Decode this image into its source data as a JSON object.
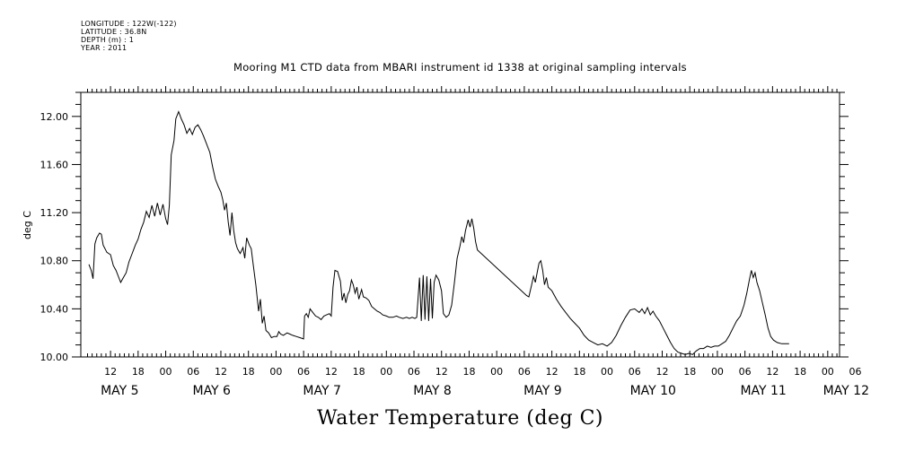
{
  "meta": {
    "longitude": "LONGITUDE : 122W(-122)",
    "latitude": "LATITUDE : 36.8N",
    "depth": "DEPTH (m) : 1",
    "year": "YEAR : 2011"
  },
  "chart_data": {
    "type": "line",
    "title": "Mooring M1 CTD data from MBARI instrument id 1338 at original sampling intervals",
    "subtitle": "Water Temperature (deg C)",
    "ylabel": "deg C",
    "xlabel": "",
    "ylim": [
      10.0,
      12.2
    ],
    "xlim_hours": [
      0,
      171
    ],
    "x_unit": "hours since 2011-05-05 07:00",
    "y_ticks": [
      "10.00",
      "10.40",
      "10.80",
      "11.20",
      "11.60",
      "12.00"
    ],
    "y_tick_values": [
      10.0,
      10.4,
      10.8,
      11.2,
      11.6,
      12.0
    ],
    "hour_ticks": [
      {
        "h": 5,
        "label": "12"
      },
      {
        "h": 11,
        "label": "18"
      },
      {
        "h": 17,
        "label": "00"
      },
      {
        "h": 23,
        "label": "06"
      },
      {
        "h": 29,
        "label": "12"
      },
      {
        "h": 35,
        "label": "18"
      },
      {
        "h": 41,
        "label": "00"
      },
      {
        "h": 47,
        "label": "06"
      },
      {
        "h": 53,
        "label": "12"
      },
      {
        "h": 59,
        "label": "18"
      },
      {
        "h": 65,
        "label": "00"
      },
      {
        "h": 71,
        "label": "06"
      },
      {
        "h": 77,
        "label": "12"
      },
      {
        "h": 83,
        "label": "18"
      },
      {
        "h": 89,
        "label": "00"
      },
      {
        "h": 95,
        "label": "06"
      },
      {
        "h": 101,
        "label": "12"
      },
      {
        "h": 107,
        "label": "18"
      },
      {
        "h": 113,
        "label": "00"
      },
      {
        "h": 119,
        "label": "06"
      },
      {
        "h": 125,
        "label": "12"
      },
      {
        "h": 131,
        "label": "18"
      },
      {
        "h": 137,
        "label": "00"
      },
      {
        "h": 143,
        "label": "06"
      },
      {
        "h": 149,
        "label": "12"
      },
      {
        "h": 155,
        "label": "18"
      },
      {
        "h": 161,
        "label": "00"
      },
      {
        "h": 167,
        "label": "06"
      }
    ],
    "day_labels": [
      {
        "h": 7,
        "label": "MAY  5"
      },
      {
        "h": 27,
        "label": "MAY  6"
      },
      {
        "h": 51,
        "label": "MAY  7"
      },
      {
        "h": 75,
        "label": "MAY  8"
      },
      {
        "h": 99,
        "label": "MAY  9"
      },
      {
        "h": 123,
        "label": "MAY 10"
      },
      {
        "h": 147,
        "label": "MAY 11"
      },
      {
        "h": 165,
        "label": "MAY 12"
      }
    ],
    "series": [
      {
        "name": "",
        "points": [
          [
            0.3,
            10.77
          ],
          [
            0.8,
            10.72
          ],
          [
            1.2,
            10.65
          ],
          [
            1.6,
            10.94
          ],
          [
            2.0,
            10.99
          ],
          [
            2.6,
            11.03
          ],
          [
            3.0,
            11.02
          ],
          [
            3.4,
            10.93
          ],
          [
            4.2,
            10.87
          ],
          [
            5.0,
            10.85
          ],
          [
            5.6,
            10.76
          ],
          [
            6.2,
            10.72
          ],
          [
            6.8,
            10.66
          ],
          [
            7.2,
            10.62
          ],
          [
            7.8,
            10.66
          ],
          [
            8.4,
            10.7
          ],
          [
            9.0,
            10.79
          ],
          [
            9.6,
            10.85
          ],
          [
            10.4,
            10.93
          ],
          [
            11.0,
            10.98
          ],
          [
            11.6,
            11.06
          ],
          [
            12.2,
            11.12
          ],
          [
            12.8,
            11.21
          ],
          [
            13.4,
            11.16
          ],
          [
            14.0,
            11.26
          ],
          [
            14.6,
            11.17
          ],
          [
            15.2,
            11.28
          ],
          [
            15.8,
            11.18
          ],
          [
            16.4,
            11.27
          ],
          [
            17.0,
            11.15
          ],
          [
            17.4,
            11.1
          ],
          [
            17.8,
            11.26
          ],
          [
            18.2,
            11.68
          ],
          [
            18.8,
            11.8
          ],
          [
            19.2,
            11.98
          ],
          [
            19.8,
            12.04
          ],
          [
            20.4,
            11.98
          ],
          [
            21.0,
            11.93
          ],
          [
            21.6,
            11.86
          ],
          [
            22.2,
            11.9
          ],
          [
            22.8,
            11.85
          ],
          [
            23.4,
            11.91
          ],
          [
            24.0,
            11.93
          ],
          [
            24.6,
            11.89
          ],
          [
            25.2,
            11.84
          ],
          [
            25.8,
            11.78
          ],
          [
            26.6,
            11.7
          ],
          [
            27.2,
            11.58
          ],
          [
            27.8,
            11.48
          ],
          [
            28.4,
            11.42
          ],
          [
            29.0,
            11.37
          ],
          [
            29.4,
            11.31
          ],
          [
            29.8,
            11.22
          ],
          [
            30.2,
            11.28
          ],
          [
            30.6,
            11.12
          ],
          [
            31.0,
            11.01
          ],
          [
            31.4,
            11.2
          ],
          [
            31.8,
            11.05
          ],
          [
            32.2,
            10.95
          ],
          [
            32.6,
            10.9
          ],
          [
            33.2,
            10.86
          ],
          [
            33.8,
            10.91
          ],
          [
            34.2,
            10.82
          ],
          [
            34.6,
            10.99
          ],
          [
            35.2,
            10.93
          ],
          [
            35.6,
            10.9
          ],
          [
            36.0,
            10.78
          ],
          [
            36.6,
            10.6
          ],
          [
            37.2,
            10.38
          ],
          [
            37.6,
            10.48
          ],
          [
            38.0,
            10.28
          ],
          [
            38.4,
            10.34
          ],
          [
            38.8,
            10.22
          ],
          [
            39.4,
            10.2
          ],
          [
            40.0,
            10.16
          ],
          [
            40.6,
            10.17
          ],
          [
            41.2,
            10.17
          ],
          [
            41.6,
            10.21
          ],
          [
            42.0,
            10.19
          ],
          [
            42.6,
            10.18
          ],
          [
            43.4,
            10.2
          ],
          [
            44.0,
            10.19
          ],
          [
            44.6,
            10.18
          ],
          [
            45.4,
            10.17
          ],
          [
            46.2,
            10.16
          ],
          [
            47.0,
            10.15
          ],
          [
            47.2,
            10.34
          ],
          [
            47.6,
            10.36
          ],
          [
            48.0,
            10.33
          ],
          [
            48.4,
            10.4
          ],
          [
            49.0,
            10.37
          ],
          [
            49.6,
            10.34
          ],
          [
            50.2,
            10.33
          ],
          [
            50.8,
            10.31
          ],
          [
            51.4,
            10.34
          ],
          [
            52.0,
            10.35
          ],
          [
            52.6,
            10.36
          ],
          [
            53.0,
            10.34
          ],
          [
            53.4,
            10.58
          ],
          [
            53.8,
            10.72
          ],
          [
            54.4,
            10.71
          ],
          [
            55.0,
            10.63
          ],
          [
            55.4,
            10.47
          ],
          [
            55.8,
            10.53
          ],
          [
            56.2,
            10.45
          ],
          [
            56.6,
            10.52
          ],
          [
            57.0,
            10.55
          ],
          [
            57.4,
            10.64
          ],
          [
            57.8,
            10.6
          ],
          [
            58.2,
            10.53
          ],
          [
            58.6,
            10.58
          ],
          [
            59.0,
            10.48
          ],
          [
            59.6,
            10.56
          ],
          [
            60.0,
            10.5
          ],
          [
            60.6,
            10.49
          ],
          [
            61.2,
            10.47
          ],
          [
            61.8,
            10.42
          ],
          [
            62.4,
            10.4
          ],
          [
            63.0,
            10.38
          ],
          [
            63.6,
            10.37
          ],
          [
            64.2,
            10.35
          ],
          [
            65.0,
            10.34
          ],
          [
            65.6,
            10.33
          ],
          [
            66.4,
            10.33
          ],
          [
            67.2,
            10.34
          ],
          [
            67.8,
            10.33
          ],
          [
            68.6,
            10.32
          ],
          [
            69.4,
            10.33
          ],
          [
            70.0,
            10.32
          ],
          [
            70.6,
            10.33
          ],
          [
            71.2,
            10.32
          ],
          [
            71.6,
            10.33
          ],
          [
            72.2,
            10.66
          ],
          [
            72.6,
            10.3
          ],
          [
            73.0,
            10.68
          ],
          [
            73.4,
            10.31
          ],
          [
            73.8,
            10.67
          ],
          [
            74.2,
            10.3
          ],
          [
            74.6,
            10.65
          ],
          [
            75.0,
            10.32
          ],
          [
            75.4,
            10.62
          ],
          [
            75.8,
            10.68
          ],
          [
            76.4,
            10.64
          ],
          [
            77.0,
            10.55
          ],
          [
            77.4,
            10.36
          ],
          [
            78.0,
            10.33
          ],
          [
            78.6,
            10.35
          ],
          [
            79.2,
            10.43
          ],
          [
            79.8,
            10.62
          ],
          [
            80.4,
            10.82
          ],
          [
            81.0,
            10.92
          ],
          [
            81.4,
            11.0
          ],
          [
            81.8,
            10.95
          ],
          [
            82.2,
            11.05
          ],
          [
            82.8,
            11.14
          ],
          [
            83.2,
            11.08
          ],
          [
            83.6,
            11.15
          ],
          [
            84.0,
            11.07
          ],
          [
            84.4,
            10.96
          ],
          [
            84.8,
            10.89
          ],
          [
            95.5,
            10.51
          ],
          [
            96.0,
            10.5
          ],
          [
            96.6,
            10.6
          ],
          [
            97.0,
            10.67
          ],
          [
            97.4,
            10.62
          ],
          [
            97.8,
            10.7
          ],
          [
            98.2,
            10.78
          ],
          [
            98.6,
            10.8
          ],
          [
            99.0,
            10.72
          ],
          [
            99.4,
            10.6
          ],
          [
            99.8,
            10.66
          ],
          [
            100.2,
            10.58
          ],
          [
            101.0,
            10.55
          ],
          [
            102.0,
            10.48
          ],
          [
            103.0,
            10.42
          ],
          [
            104.0,
            10.37
          ],
          [
            105.0,
            10.32
          ],
          [
            106.0,
            10.28
          ],
          [
            107.0,
            10.24
          ],
          [
            108.0,
            10.18
          ],
          [
            109.0,
            10.14
          ],
          [
            110.0,
            10.12
          ],
          [
            111.0,
            10.1
          ],
          [
            112.0,
            10.11
          ],
          [
            113.0,
            10.09
          ],
          [
            114.0,
            10.12
          ],
          [
            115.0,
            10.18
          ],
          [
            116.0,
            10.26
          ],
          [
            117.0,
            10.33
          ],
          [
            118.0,
            10.39
          ],
          [
            119.0,
            10.4
          ],
          [
            120.0,
            10.37
          ],
          [
            120.6,
            10.4
          ],
          [
            121.2,
            10.36
          ],
          [
            121.8,
            10.41
          ],
          [
            122.4,
            10.35
          ],
          [
            123.0,
            10.38
          ],
          [
            123.6,
            10.34
          ],
          [
            124.4,
            10.3
          ],
          [
            125.2,
            10.24
          ],
          [
            126.0,
            10.18
          ],
          [
            126.8,
            10.12
          ],
          [
            127.6,
            10.07
          ],
          [
            128.4,
            10.04
          ],
          [
            129.2,
            10.03
          ],
          [
            130.0,
            10.02
          ],
          [
            130.8,
            10.03
          ],
          [
            131.6,
            10.02
          ],
          [
            132.4,
            10.05
          ],
          [
            133.2,
            10.07
          ],
          [
            134.0,
            10.07
          ],
          [
            134.8,
            10.09
          ],
          [
            135.6,
            10.08
          ],
          [
            136.4,
            10.09
          ],
          [
            137.2,
            10.09
          ],
          [
            138.0,
            10.11
          ],
          [
            138.8,
            10.13
          ],
          [
            139.6,
            10.18
          ],
          [
            140.4,
            10.24
          ],
          [
            141.2,
            10.3
          ],
          [
            142.0,
            10.34
          ],
          [
            142.8,
            10.43
          ],
          [
            143.4,
            10.53
          ],
          [
            144.0,
            10.65
          ],
          [
            144.4,
            10.72
          ],
          [
            144.8,
            10.66
          ],
          [
            145.2,
            10.7
          ],
          [
            145.6,
            10.62
          ],
          [
            146.2,
            10.55
          ],
          [
            146.8,
            10.45
          ],
          [
            147.4,
            10.35
          ],
          [
            148.0,
            10.24
          ],
          [
            148.6,
            10.17
          ],
          [
            149.2,
            10.14
          ],
          [
            150.0,
            10.12
          ],
          [
            151.0,
            10.11
          ],
          [
            152.0,
            10.11
          ],
          [
            152.6,
            10.11
          ]
        ]
      }
    ]
  }
}
